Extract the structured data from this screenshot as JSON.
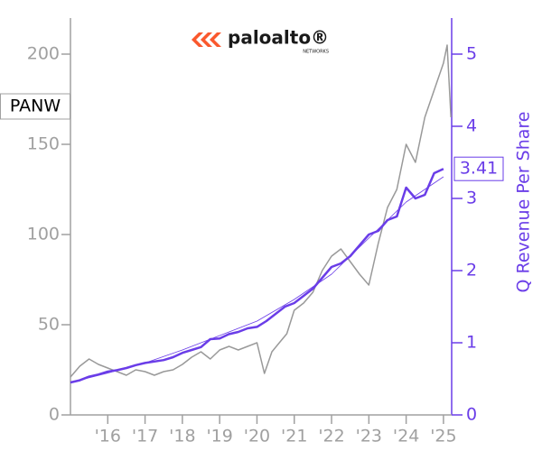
{
  "chart_data": {
    "type": "line",
    "title": "paloalto®",
    "subtitle": "NETWORKS",
    "y2label": "Q Revenue Per Share",
    "xlim": [
      2015.0,
      2025.22
    ],
    "xticks": [
      {
        "value": 2016,
        "label": "'16"
      },
      {
        "value": 2017,
        "label": "'17"
      },
      {
        "value": 2018,
        "label": "'18"
      },
      {
        "value": 2019,
        "label": "'19"
      },
      {
        "value": 2020,
        "label": "'20"
      },
      {
        "value": 2021,
        "label": "'21"
      },
      {
        "value": 2022,
        "label": "'22"
      },
      {
        "value": 2023,
        "label": "'23"
      },
      {
        "value": 2024,
        "label": "'24"
      },
      {
        "value": 2025,
        "label": "'25"
      }
    ],
    "ylim": [
      0,
      220
    ],
    "yticks": [
      0,
      50,
      100,
      150,
      200
    ],
    "y2lim": [
      0,
      5.5
    ],
    "y2ticks": [
      0,
      1,
      2,
      3,
      4,
      5
    ],
    "series": [
      {
        "name": "PANW",
        "color": "#999999",
        "axis": "y",
        "x": [
          2015.0,
          2015.25,
          2015.5,
          2015.75,
          2016.0,
          2016.25,
          2016.5,
          2016.75,
          2017.0,
          2017.25,
          2017.5,
          2017.75,
          2018.0,
          2018.25,
          2018.5,
          2018.75,
          2019.0,
          2019.25,
          2019.5,
          2019.75,
          2020.0,
          2020.2,
          2020.4,
          2020.6,
          2020.8,
          2021.0,
          2021.25,
          2021.5,
          2021.75,
          2022.0,
          2022.25,
          2022.5,
          2022.75,
          2023.0,
          2023.25,
          2023.5,
          2023.75,
          2024.0,
          2024.25,
          2024.5,
          2024.75,
          2025.0,
          2025.1,
          2025.2
        ],
        "values": [
          21,
          27,
          31,
          28,
          26,
          24,
          22,
          25,
          24,
          22,
          24,
          25,
          28,
          32,
          35,
          31,
          36,
          38,
          36,
          38,
          40,
          23,
          35,
          40,
          45,
          58,
          62,
          68,
          80,
          88,
          92,
          85,
          78,
          72,
          95,
          115,
          125,
          150,
          140,
          165,
          180,
          195,
          205,
          165
        ]
      },
      {
        "color": "#6a3de8",
        "axis": "y2",
        "x": [
          2015.0,
          2015.25,
          2015.5,
          2015.75,
          2016.0,
          2016.25,
          2016.5,
          2016.75,
          2017.0,
          2017.25,
          2017.5,
          2017.75,
          2018.0,
          2018.25,
          2018.5,
          2018.75,
          2019.0,
          2019.25,
          2019.5,
          2019.75,
          2020.0,
          2020.25,
          2020.5,
          2020.75,
          2021.0,
          2021.25,
          2021.5,
          2021.75,
          2022.0,
          2022.25,
          2022.5,
          2022.75,
          2023.0,
          2023.25,
          2023.5,
          2023.75,
          2024.0,
          2024.25,
          2024.5,
          2024.75,
          2025.0
        ],
        "values": [
          0.45,
          0.48,
          0.53,
          0.56,
          0.6,
          0.62,
          0.65,
          0.69,
          0.72,
          0.74,
          0.76,
          0.8,
          0.86,
          0.9,
          0.94,
          1.05,
          1.06,
          1.12,
          1.15,
          1.2,
          1.22,
          1.3,
          1.4,
          1.5,
          1.55,
          1.65,
          1.75,
          1.9,
          2.05,
          2.1,
          2.2,
          2.35,
          2.5,
          2.55,
          2.7,
          2.75,
          3.15,
          3.0,
          3.05,
          3.35,
          3.41
        ]
      },
      {
        "color": "#6a3de8",
        "axis": "y2",
        "x": [
          2015,
          2016,
          2017,
          2018,
          2019,
          2020,
          2021,
          2022,
          2023,
          2024,
          2025
        ],
        "values": [
          0.45,
          0.58,
          0.72,
          0.9,
          1.1,
          1.3,
          1.6,
          1.95,
          2.45,
          2.95,
          3.3
        ]
      }
    ]
  }
}
